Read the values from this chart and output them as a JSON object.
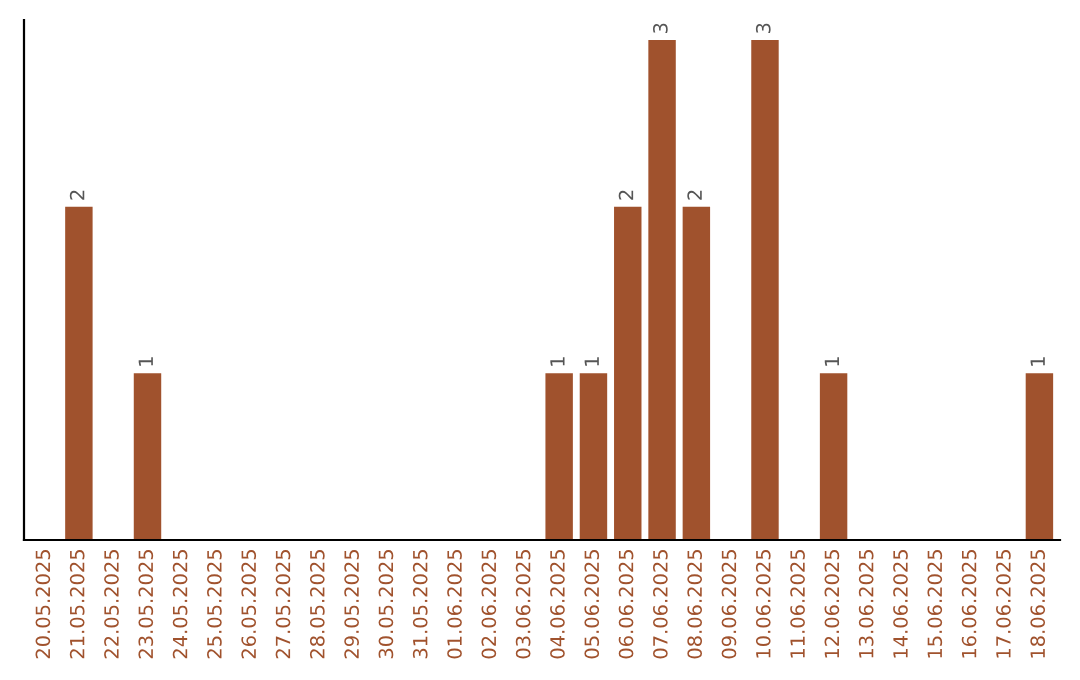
{
  "chart_data": {
    "type": "bar",
    "categories": [
      "20.05.2025",
      "21.05.2025",
      "22.05.2025",
      "23.05.2025",
      "24.05.2025",
      "25.05.2025",
      "26.05.2025",
      "27.05.2025",
      "28.05.2025",
      "29.05.2025",
      "30.05.2025",
      "31.05.2025",
      "01.06.2025",
      "02.06.2025",
      "03.06.2025",
      "04.06.2025",
      "05.06.2025",
      "06.06.2025",
      "07.06.2025",
      "08.06.2025",
      "09.06.2025",
      "10.06.2025",
      "11.06.2025",
      "12.06.2025",
      "13.06.2025",
      "14.06.2025",
      "15.06.2025",
      "16.06.2025",
      "17.06.2025",
      "18.06.2025"
    ],
    "values": [
      0,
      2,
      0,
      1,
      0,
      0,
      0,
      0,
      0,
      0,
      0,
      0,
      0,
      0,
      0,
      1,
      1,
      2,
      3,
      2,
      0,
      3,
      0,
      1,
      0,
      0,
      0,
      0,
      0,
      1
    ],
    "value_labels": [
      null,
      "2",
      null,
      "1",
      null,
      null,
      null,
      null,
      null,
      null,
      null,
      null,
      null,
      null,
      null,
      "1",
      "1",
      "2",
      "3",
      "2",
      null,
      "3",
      null,
      "1",
      null,
      null,
      null,
      null,
      null,
      "1"
    ],
    "color": "#a0522d",
    "tick_labels": "x",
    "grid": false,
    "legend": false
  }
}
